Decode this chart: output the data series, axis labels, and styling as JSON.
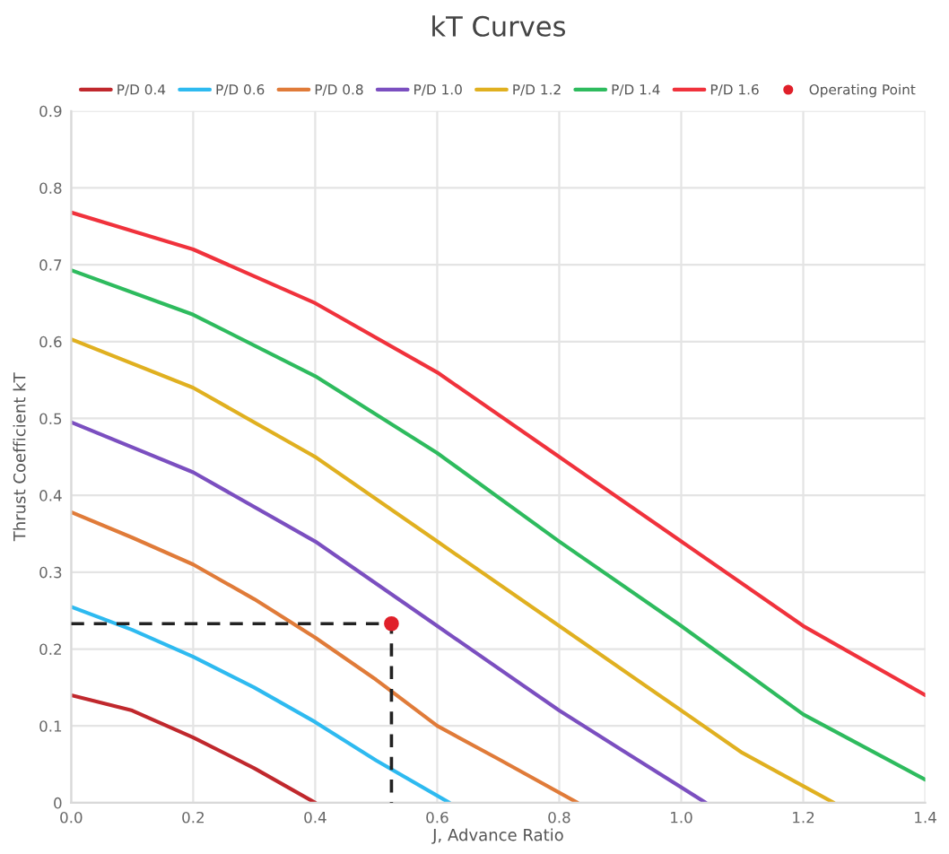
{
  "chart_data": {
    "type": "line",
    "title": "kT Curves",
    "xlabel": "J, Advance Ratio",
    "ylabel": "Thrust Coefficient kT",
    "xlim": [
      0,
      1.4
    ],
    "ylim": [
      0,
      0.9
    ],
    "xticks": [
      {
        "value": 0,
        "label": "0.0"
      },
      0.2,
      0.4,
      0.6,
      0.8,
      {
        "value": 1,
        "label": "1.0"
      },
      1.2,
      1.4
    ],
    "yticks": [
      0,
      0.1,
      0.2,
      0.3,
      0.4,
      0.5,
      0.6,
      0.7,
      0.8,
      0.9
    ],
    "grid": true,
    "legend": "top",
    "marker": "none",
    "line_style": "solid",
    "series": [
      {
        "name": "P/D 0.4",
        "color": "#c0282d",
        "x": [
          0,
          0.1,
          0.2,
          0.3,
          0.4
        ],
        "values": [
          0.14,
          0.12,
          0.085,
          0.045,
          0.0
        ]
      },
      {
        "name": "P/D 0.6",
        "color": "#2ebaf0",
        "x": [
          0,
          0.1,
          0.2,
          0.3,
          0.4,
          0.5,
          0.62
        ],
        "values": [
          0.255,
          0.225,
          0.19,
          0.15,
          0.105,
          0.055,
          0.0
        ]
      },
      {
        "name": "P/D 0.8",
        "color": "#e07b39",
        "x": [
          0,
          0.1,
          0.2,
          0.3,
          0.4,
          0.5,
          0.6,
          0.7,
          0.83
        ],
        "values": [
          0.378,
          0.345,
          0.31,
          0.265,
          0.215,
          0.16,
          0.1,
          0.057,
          0.0
        ]
      },
      {
        "name": "P/D 1.0",
        "color": "#7b4fc0",
        "x": [
          0,
          0.2,
          0.4,
          0.6,
          0.8,
          0.9,
          1.04
        ],
        "values": [
          0.495,
          0.43,
          0.34,
          0.23,
          0.12,
          0.07,
          0.0
        ]
      },
      {
        "name": "P/D 1.2",
        "color": "#e0b020",
        "x": [
          0,
          0.2,
          0.4,
          0.6,
          0.8,
          1.0,
          1.1,
          1.25
        ],
        "values": [
          0.603,
          0.54,
          0.45,
          0.34,
          0.23,
          0.12,
          0.065,
          0.0
        ]
      },
      {
        "name": "P/D 1.4",
        "color": "#2ebb5e",
        "x": [
          0,
          0.2,
          0.4,
          0.6,
          0.8,
          1.0,
          1.2,
          1.4
        ],
        "values": [
          0.693,
          0.635,
          0.555,
          0.455,
          0.34,
          0.23,
          0.115,
          0.03
        ]
      },
      {
        "name": "P/D 1.6",
        "color": "#f0323c",
        "x": [
          0,
          0.2,
          0.4,
          0.6,
          0.8,
          1.0,
          1.2,
          1.4
        ],
        "values": [
          0.768,
          0.72,
          0.65,
          0.56,
          0.45,
          0.34,
          0.23,
          0.14
        ]
      },
      {
        "type": "line",
        "color": "#222222",
        "line_style": "dashed",
        "x": [
          0,
          0.525,
          0.525
        ],
        "values": [
          0.233,
          0.233,
          0
        ]
      },
      {
        "type": "scatter",
        "name": "Operating Point",
        "color": "#e0202a",
        "marker": "circle",
        "x": [
          0.525
        ],
        "values": [
          0.233
        ]
      }
    ]
  }
}
